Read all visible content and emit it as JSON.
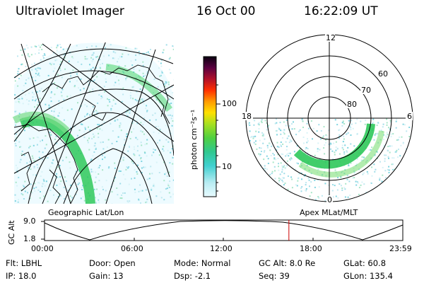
{
  "header": {
    "instrument": "Ultraviolet Imager",
    "date": "16 Oct 00",
    "time": "16:22:09 UT"
  },
  "colorbar": {
    "label": "photon cm⁻²s⁻¹",
    "ticks": [
      "100",
      "10"
    ]
  },
  "geo_panel": {
    "caption": "Geographic Lat/Lon"
  },
  "polar_panel": {
    "caption": "Apex MLat/MLT",
    "mlt_labels": [
      "12",
      "18",
      "6",
      "0"
    ],
    "mlat_labels": [
      "60",
      "70",
      "80"
    ]
  },
  "altitude_plot": {
    "axis_title": "GC Alt",
    "y_ticks": [
      "9.0",
      "1.8"
    ],
    "time_ticks": [
      "00:00",
      "06:00",
      "12:00",
      "18:00",
      "23:59"
    ],
    "current_time_hours": 16.37
  },
  "info": {
    "row1": [
      {
        "label": "Flt:",
        "value": "LBHL"
      },
      {
        "label": "Door:",
        "value": "Open"
      },
      {
        "label": "Mode:",
        "value": "Normal"
      },
      {
        "label": "GC Alt:",
        "value": "8.0 Re"
      },
      {
        "label": "GLat:",
        "value": "60.8"
      }
    ],
    "row2": [
      {
        "label": "IP:",
        "value": "18.0"
      },
      {
        "label": "Gain:",
        "value": "13"
      },
      {
        "label": "Dsp:",
        "value": "-2.1"
      },
      {
        "label": "Seq:",
        "value": "39"
      },
      {
        "label": "GLon:",
        "value": "135.4"
      }
    ]
  },
  "colors": {
    "aurora_bright": "#22c855",
    "aurora_mid": "#7fe07a",
    "aurora_faint": "#8fd8e8",
    "marker": "#cc0000"
  }
}
